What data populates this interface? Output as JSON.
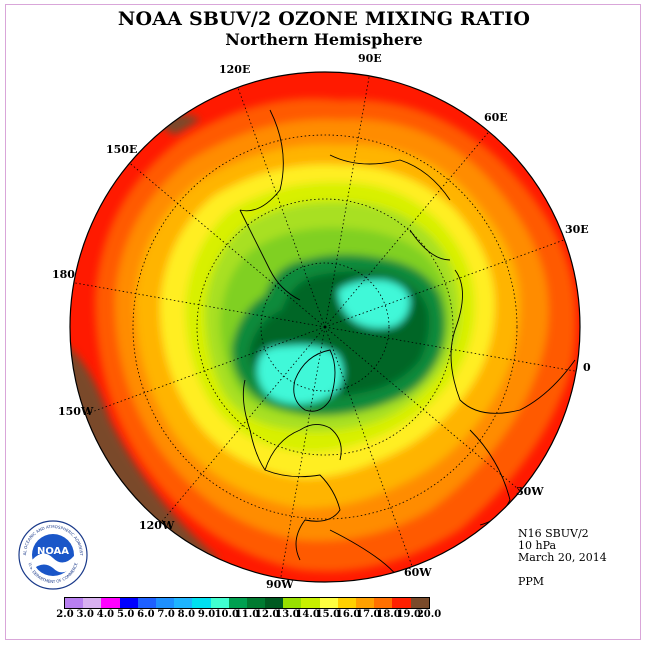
{
  "title": "NOAA SBUV/2 OZONE MIXING RATIO",
  "subtitle": "Northern Hemisphere",
  "longitude_labels": [
    "90E",
    "60E",
    "30E",
    "0",
    "30W",
    "60W",
    "90W",
    "120W",
    "150W",
    "180",
    "150E",
    "120E"
  ],
  "info": {
    "instrument": "N16 SBUV/2",
    "level": "10 hPa",
    "date": "March 20, 2014",
    "units": "PPM"
  },
  "logo": {
    "text": "NOAA",
    "ring_top": "NATIONAL OCEANIC AND ATMOSPHERIC ADMINISTRATION",
    "ring_bottom": "U.S. DEPARTMENT OF COMMERCE"
  },
  "colorbar": {
    "ticks": [
      "2.0",
      "3.0",
      "4.0",
      "5.0",
      "6.0",
      "7.0",
      "8.0",
      "9.0",
      "10.0",
      "11.0",
      "12.0",
      "13.0",
      "14.0",
      "15.0",
      "16.0",
      "17.0",
      "18.0",
      "19.0",
      "20.0"
    ],
    "colors": [
      "#b87ff0",
      "#d8b0f0",
      "#ff00ff",
      "#0000ff",
      "#1e60ff",
      "#1e90ff",
      "#1eb4ff",
      "#00e0f0",
      "#40ffd0",
      "#00a050",
      "#007a30",
      "#005a20",
      "#98e000",
      "#c8f000",
      "#ffff40",
      "#ffd000",
      "#ffa000",
      "#ff7000",
      "#ff2000",
      "#7a4a2a"
    ]
  },
  "map_colors": {
    "brown": "#7a4a2a",
    "red": "#ff1a00",
    "orange_red": "#ff5a00",
    "orange": "#ff8c00",
    "amber": "#ffb400",
    "yellow": "#ffee20",
    "yellow_green": "#d8f000",
    "lime": "#a8e020",
    "green": "#80d020",
    "dark_green1": "#0a8a3a",
    "dark_green2": "#006628",
    "cyan": "#40f8d8"
  }
}
